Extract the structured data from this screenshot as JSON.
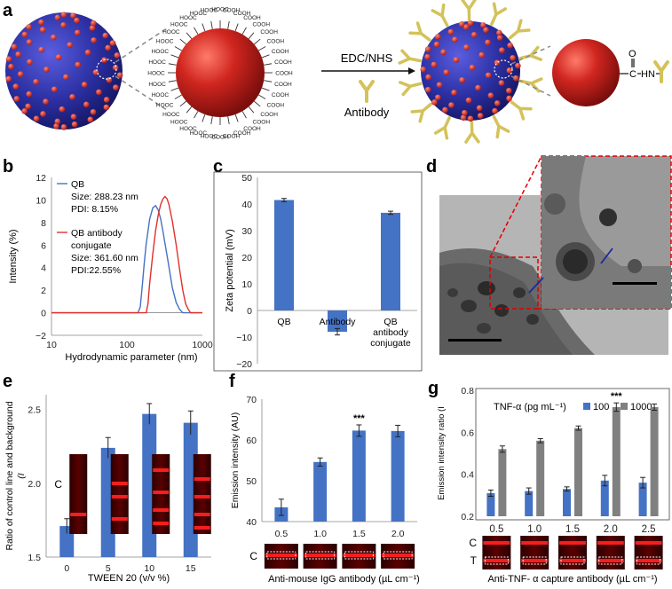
{
  "panels": {
    "a": "a",
    "b": "b",
    "c": "c",
    "d": "d",
    "e": "e",
    "f": "f",
    "g": "g"
  },
  "colors": {
    "blue": "#4472c4",
    "red": "#e0302a",
    "gray": "#808080",
    "yellow": "#d4c25a",
    "sphere_red": "#c8201e",
    "sphere_blue": "#2b2fa3",
    "dash_red": "#e00000"
  },
  "panel_a": {
    "cooh_label": "COOH",
    "hooc_label": "HOOC",
    "reagent": "EDC/NHS",
    "antibody_label": "Antibody",
    "linker": [
      "C",
      "HN",
      "O"
    ]
  },
  "chart_b": {
    "type": "line",
    "ylabel": "Intensity (%)",
    "xlabel": "Hydrodynamic parameter (nm)",
    "xscale": "log",
    "xlim": [
      10,
      1000
    ],
    "ylim": [
      -2,
      12
    ],
    "xticks": [
      "10",
      "100",
      "1000"
    ],
    "yticks": [
      "−2",
      "0",
      "2",
      "4",
      "6",
      "8",
      "10",
      "12"
    ],
    "series": [
      {
        "name": "QB",
        "size": "Size: 288.23 nm",
        "pdi": "PDI: 8.15%",
        "x": [
          10,
          100,
          140,
          150,
          160,
          170,
          180,
          200,
          220,
          240,
          260,
          280,
          300,
          350,
          400,
          450,
          500,
          550,
          600,
          1000
        ],
        "y": [
          0,
          0,
          0,
          0.5,
          2.5,
          4.5,
          6.1,
          8.3,
          9.3,
          9.5,
          9.1,
          8.3,
          7.2,
          4.6,
          2.2,
          0.9,
          0.3,
          0,
          0,
          0
        ]
      },
      {
        "name": "QB antibody",
        "name2": "conjugate",
        "size": "Size: 361.60 nm",
        "pdi": "PDI:22.55%",
        "x": [
          10,
          100,
          180,
          190,
          200,
          220,
          240,
          260,
          280,
          300,
          320,
          340,
          360,
          400,
          450,
          500,
          550,
          600,
          650,
          700,
          800,
          1000
        ],
        "y": [
          0,
          0,
          0,
          0.8,
          2.6,
          5.2,
          7.3,
          8.7,
          9.6,
          10.1,
          10.3,
          10.1,
          9.6,
          8.1,
          6.0,
          3.8,
          2.0,
          0.8,
          0.3,
          0,
          0,
          0
        ]
      }
    ]
  },
  "chart_c": {
    "type": "bar",
    "ylabel": "Zeta potential (mV)",
    "ylim": [
      -20,
      50
    ],
    "yticks": [
      "−20",
      "−10",
      "0",
      "10",
      "20",
      "30",
      "40",
      "50"
    ],
    "categories": [
      "QB",
      "Antibody",
      "QB antibody conjugate"
    ],
    "category_lines": [
      [
        "QB"
      ],
      [
        "Antibody"
      ],
      [
        "QB",
        "antibody",
        "conjugate"
      ]
    ],
    "values": [
      41.5,
      -8,
      36.7
    ],
    "errors": [
      0.6,
      1.2,
      0.6
    ]
  },
  "chart_e": {
    "type": "bar",
    "ylabel": "Ratio of control line and background",
    "ylabel_sub": "(I",
    "xlabel": "TWEEN 20 (v/v %)",
    "categories": [
      "0",
      "5",
      "10",
      "15"
    ],
    "values": [
      1.71,
      2.24,
      2.47,
      2.41
    ],
    "errors": [
      0.05,
      0.07,
      0.07,
      0.08
    ],
    "ylim": [
      1.5,
      2.6
    ],
    "yticks": [
      "1.5",
      "2.0",
      "2.5"
    ],
    "strip_label": "C"
  },
  "chart_f": {
    "type": "bar",
    "ylabel": "Emission intensity (AU)",
    "xlabel": "Anti-mouse IgG antibody (µL cm⁻¹)",
    "categories": [
      "0.5",
      "1.0",
      "1.5",
      "2.0"
    ],
    "values": [
      43.5,
      54.6,
      62.3,
      62.2
    ],
    "errors": [
      2.0,
      1.0,
      1.4,
      1.4
    ],
    "ylim": [
      40,
      70
    ],
    "yticks": [
      "40",
      "50",
      "60",
      "70"
    ],
    "significance": "***",
    "strip_label": "C"
  },
  "chart_g": {
    "type": "bar",
    "ylabel": "Emission intensity ratio (I",
    "xlabel": "Anti-TNF- α capture antibody (µL cm⁻¹)",
    "legend_title": "TNF-α (pg mL⁻¹)",
    "categories": [
      "0.5",
      "1.0",
      "1.5",
      "2.0",
      "2.5"
    ],
    "series": [
      {
        "name": "100",
        "values": [
          0.31,
          0.32,
          0.33,
          0.37,
          0.36
        ],
        "errors": [
          0.015,
          0.015,
          0.01,
          0.025,
          0.025
        ]
      },
      {
        "name": "1000",
        "values": [
          0.52,
          0.56,
          0.62,
          0.72,
          0.72
        ],
        "errors": [
          0.015,
          0.01,
          0.01,
          0.02,
          0.015
        ]
      }
    ],
    "ylim": [
      0.2,
      0.8
    ],
    "yticks": [
      "0.2",
      "0.4",
      "0.6",
      "0.8"
    ],
    "significance": "***",
    "strip_labels": [
      "C",
      "T"
    ]
  }
}
